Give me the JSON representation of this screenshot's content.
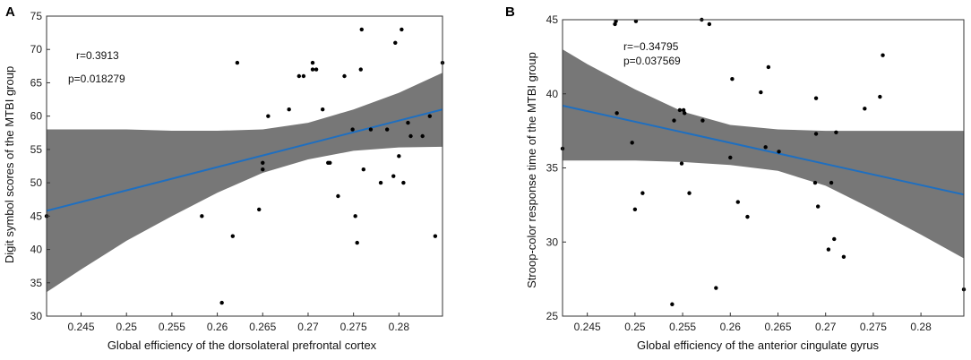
{
  "chart_data": [
    {
      "type": "scatter",
      "panel": "A",
      "xlabel": "Global efficiency of the dorsolateral prefrontal cortex",
      "ylabel": "Digit symbol scores of the MTBI group",
      "xlim": [
        0.2412,
        0.2848
      ],
      "ylim": [
        30,
        75
      ],
      "xticks": [
        0.245,
        0.25,
        0.255,
        0.26,
        0.265,
        0.27,
        0.275,
        0.28
      ],
      "xtick_labels": [
        "0.245",
        "0.25",
        "0.255",
        "0.26",
        "0.265",
        "0.27",
        "0.275",
        "0.28"
      ],
      "yticks": [
        30,
        35,
        40,
        45,
        50,
        55,
        60,
        65,
        70,
        75
      ],
      "ytick_labels": [
        "30",
        "35",
        "40",
        "45",
        "50",
        "55",
        "60",
        "65",
        "70",
        "75"
      ],
      "annotations": [
        "r=0.3913",
        "p=0.018279"
      ],
      "fit_line": {
        "x": [
          0.2412,
          0.2848
        ],
        "y": [
          45.8,
          61.0
        ],
        "color": "#1f6fc0"
      },
      "ci_band": {
        "x": [
          0.2412,
          0.245,
          0.25,
          0.255,
          0.26,
          0.265,
          0.27,
          0.275,
          0.28,
          0.2848
        ],
        "upper": [
          58.0,
          58.0,
          58.0,
          57.8,
          57.8,
          58.0,
          59.0,
          61.0,
          63.5,
          66.5
        ],
        "lower": [
          33.6,
          37.0,
          41.3,
          45.0,
          48.5,
          51.5,
          53.5,
          54.8,
          55.3,
          55.4
        ],
        "color": "#777777"
      },
      "points": {
        "x": [
          0.2412,
          0.2583,
          0.2605,
          0.2617,
          0.2622,
          0.2646,
          0.265,
          0.265,
          0.2656,
          0.2679,
          0.269,
          0.2695,
          0.2705,
          0.2705,
          0.2709,
          0.2716,
          0.2722,
          0.2724,
          0.2733,
          0.274,
          0.2749,
          0.2752,
          0.2754,
          0.2758,
          0.2759,
          0.2761,
          0.2769,
          0.278,
          0.2787,
          0.2794,
          0.2796,
          0.28,
          0.2803,
          0.2805,
          0.281,
          0.2813,
          0.2826,
          0.2834,
          0.284,
          0.2848
        ],
        "y": [
          45,
          45,
          32,
          42,
          68,
          46,
          53,
          52,
          60,
          61,
          66,
          66,
          67,
          68,
          67,
          61,
          53,
          53,
          48,
          66,
          58,
          45,
          41,
          67,
          73,
          52,
          58,
          50,
          58,
          51,
          71,
          54,
          73,
          50,
          59,
          57,
          57,
          60,
          42,
          68
        ]
      }
    },
    {
      "type": "scatter",
      "panel": "B",
      "xlabel": "Global efficiency of the anterior cingulate gyrus",
      "ylabel": "Stroop-color response time of the MTBI group",
      "xlim": [
        0.2424,
        0.2845
      ],
      "ylim": [
        25,
        45
      ],
      "xticks": [
        0.245,
        0.25,
        0.255,
        0.26,
        0.265,
        0.27,
        0.275,
        0.28
      ],
      "xtick_labels": [
        "0.245",
        "0.25",
        "0.255",
        "0.26",
        "0.265",
        "0.27",
        "0.275",
        "0.28"
      ],
      "yticks": [
        25,
        30,
        35,
        40,
        45
      ],
      "ytick_labels": [
        "25",
        "30",
        "35",
        "40",
        "45"
      ],
      "annotations": [
        "r=−0.34795",
        "p=0.037569"
      ],
      "fit_line": {
        "x": [
          0.2424,
          0.2845
        ],
        "y": [
          39.2,
          33.2
        ],
        "color": "#1f6fc0"
      },
      "ci_band": {
        "x": [
          0.2424,
          0.245,
          0.25,
          0.255,
          0.26,
          0.265,
          0.27,
          0.275,
          0.28,
          0.2845
        ],
        "upper": [
          43.0,
          42.0,
          40.3,
          38.8,
          37.9,
          37.6,
          37.5,
          37.5,
          37.5,
          37.5
        ],
        "lower": [
          35.5,
          35.5,
          35.5,
          35.4,
          35.2,
          34.8,
          33.8,
          32.2,
          30.5,
          28.9
        ],
        "color": "#777777"
      },
      "points": {
        "x": [
          0.2424,
          0.2479,
          0.248,
          0.2481,
          0.2497,
          0.25,
          0.2501,
          0.2508,
          0.2539,
          0.2541,
          0.2547,
          0.2549,
          0.2551,
          0.2552,
          0.2557,
          0.257,
          0.2571,
          0.2578,
          0.2585,
          0.26,
          0.2602,
          0.2608,
          0.2618,
          0.2632,
          0.2637,
          0.264,
          0.2651,
          0.2689,
          0.269,
          0.269,
          0.2692,
          0.2703,
          0.2706,
          0.2709,
          0.2711,
          0.2719,
          0.2741,
          0.2757,
          0.276,
          0.2845
        ],
        "y": [
          36.3,
          44.7,
          44.9,
          38.7,
          36.7,
          32.2,
          44.9,
          33.3,
          25.8,
          38.2,
          38.9,
          35.3,
          38.9,
          38.7,
          33.3,
          45.0,
          38.2,
          44.7,
          26.9,
          35.7,
          41.0,
          32.7,
          31.7,
          40.1,
          36.4,
          41.8,
          36.1,
          34.0,
          37.3,
          39.7,
          32.4,
          29.5,
          34.0,
          30.2,
          37.4,
          29.0,
          39.0,
          39.8,
          42.6,
          26.8
        ]
      }
    }
  ],
  "panel_letters": [
    "A",
    "B"
  ]
}
